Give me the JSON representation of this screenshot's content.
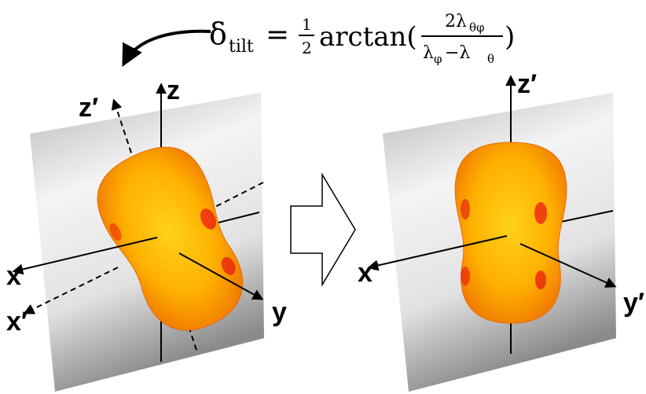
{
  "formula": {
    "delta": "δ",
    "delta_sub": "tilt",
    "equals": "=",
    "half_num": "1",
    "half_den": "2",
    "func": "arctan(",
    "num": "2λ",
    "num_sub": "θφ",
    "den_a": "λ",
    "den_a_sub": "φ",
    "den_minus": "−λ",
    "den_b_sub": "θ",
    "close": ")"
  },
  "left_axes": {
    "z": "z",
    "z_prime": "z′",
    "x": "x",
    "x_prime": "x′",
    "y": "y"
  },
  "right_axes": {
    "z_prime": "z′",
    "x_prime": "x′",
    "y_prime": "y′"
  }
}
